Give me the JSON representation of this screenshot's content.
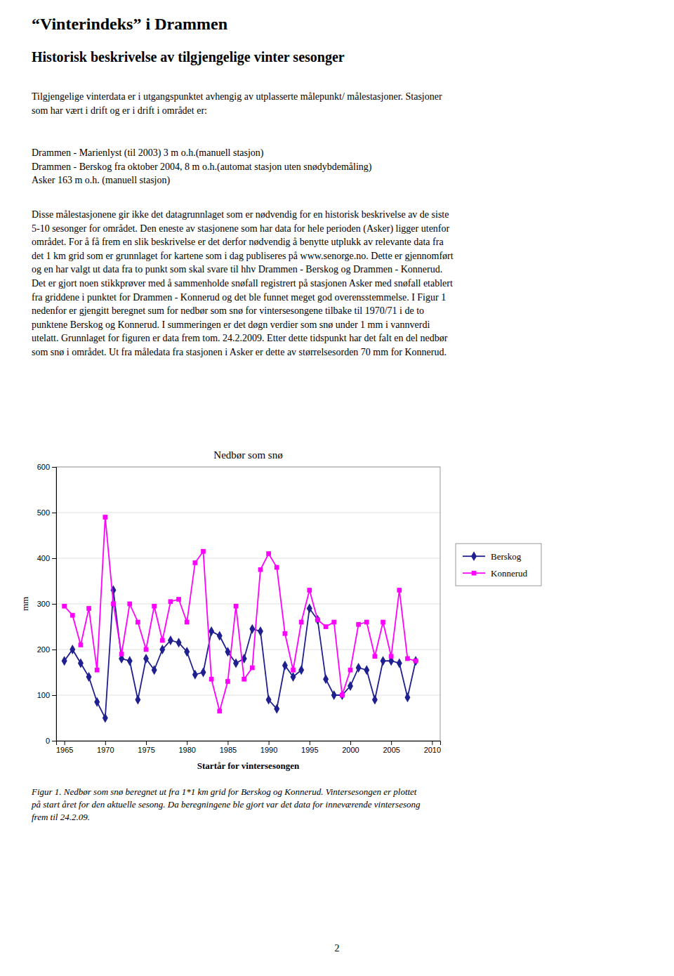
{
  "title": "“Vinterindeks” i Drammen",
  "subtitle": "Historisk beskrivelse av tilgjengelige vinter sesonger",
  "paragraphs": [
    "Tilgjengelige vinterdata er i utgangspunktet avhengig av utplasserte målepunkt/ målestasjoner. Stasjoner\nsom har vært i drift og er i drift i området er:",
    "Drammen - Marienlyst (til 2003) 3 m o.h.(manuell stasjon)\nDrammen - Berskog fra oktober 2004, 8 m o.h.(automat stasjon uten snødybdemåling)\nAsker 163 m o.h. (manuell stasjon)",
    "Disse målestasjonene gir ikke det datagrunnlaget som er nødvendig for en historisk beskrivelse av de siste\n5-10 sesonger for området. Den eneste av stasjonene som har data for hele perioden (Asker) ligger utenfor\nområdet. For å få frem en slik beskrivelse er det derfor nødvendig å benytte utplukk av relevante data fra\ndet 1 km grid som er grunnlaget for kartene som i dag publiseres på www.senorge.no. Dette er gjennomført\nog en har valgt ut data fra to punkt som skal svare til hhv Drammen - Berskog og Drammen - Konnerud.\nDet er gjort noen stikkprøver med å sammenholde snøfall registrert på stasjonen Asker med snøfall etablert\nfra griddene i punktet for Drammen - Konnerud og det ble funnet meget god overensstemmelse. I Figur 1\nnedenfor er gjengitt beregnet sum for nedbør som snø for vintersesongene tilbake til 1970/71 i de to\npunktene Berskog og Konnerud. I summeringen er det døgn verdier som snø under 1 mm i vannverdi\nutelatt. Grunnlaget for figuren er data frem tom. 24.2.2009. Etter dette tidspunkt har det falt en del nedbør\nsom snø i området. Ut fra måledata fra stasjonen i Asker er dette av størrelsesorden 70 mm for Konnerud."
  ],
  "caption": "Figur 1. Nedbør som snø beregnet ut fra 1*1 km grid for Berskog og Konnerud. Vintersesongen er plottet\npå start året for den aktuelle sesong. Da beregningene ble gjort var det data for inneværende vintersesong\nfrem til 24.2.09.",
  "page_number": "2",
  "chart_data": {
    "type": "line",
    "title": "Nedbør som snø",
    "x_label": "Startår for vintersesongen",
    "y_label": "mm",
    "x": [
      1965,
      1966,
      1967,
      1968,
      1969,
      1970,
      1971,
      1972,
      1973,
      1974,
      1975,
      1976,
      1977,
      1978,
      1979,
      1980,
      1981,
      1982,
      1983,
      1984,
      1985,
      1986,
      1987,
      1988,
      1989,
      1990,
      1991,
      1992,
      1993,
      1994,
      1995,
      1996,
      1997,
      1998,
      1999,
      2000,
      2001,
      2002,
      2003,
      2004,
      2005,
      2006,
      2007,
      2008
    ],
    "series": [
      {
        "name": "Berskog",
        "color": "#1f1f8f",
        "marker": "diamond",
        "values": [
          175,
          200,
          170,
          140,
          85,
          50,
          330,
          180,
          175,
          90,
          180,
          155,
          200,
          220,
          215,
          195,
          145,
          150,
          240,
          230,
          195,
          170,
          180,
          245,
          240,
          90,
          70,
          165,
          140,
          155,
          290,
          265,
          135,
          100,
          100,
          120,
          160,
          155,
          90,
          175,
          175,
          170,
          95,
          175
        ]
      },
      {
        "name": "Konnerud",
        "color": "#ff00ff",
        "marker": "square",
        "values": [
          295,
          275,
          210,
          290,
          155,
          490,
          300,
          190,
          300,
          260,
          200,
          295,
          220,
          305,
          310,
          260,
          390,
          415,
          135,
          65,
          130,
          295,
          135,
          160,
          375,
          410,
          380,
          235,
          155,
          260,
          330,
          265,
          250,
          260,
          100,
          155,
          255,
          260,
          185,
          260,
          185,
          330,
          180,
          175
        ]
      }
    ],
    "xlim": [
      1964,
      2011
    ],
    "xticks": [
      1965,
      1970,
      1975,
      1980,
      1985,
      1990,
      1995,
      2000,
      2005,
      2010
    ],
    "ylim": [
      0,
      600
    ],
    "yticks": [
      0,
      100,
      200,
      300,
      400,
      500,
      600
    ],
    "grid": "y",
    "legend": "right"
  }
}
